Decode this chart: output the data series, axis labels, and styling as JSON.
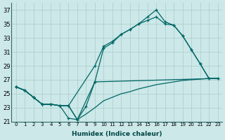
{
  "xlabel": "Humidex (Indice chaleur)",
  "bg_color": "#cce8e8",
  "grid_color": "#aacccc",
  "line_color": "#006666",
  "xlim": [
    -0.5,
    23.5
  ],
  "ylim": [
    21,
    38
  ],
  "yticks": [
    21,
    23,
    25,
    27,
    29,
    31,
    33,
    35,
    37
  ],
  "xticks": [
    0,
    1,
    2,
    3,
    4,
    5,
    6,
    7,
    8,
    9,
    10,
    11,
    12,
    13,
    14,
    15,
    16,
    17,
    18,
    19,
    20,
    21,
    22,
    23
  ],
  "s1x": [
    0,
    1,
    2,
    3,
    4,
    5,
    6,
    7,
    8,
    9,
    10,
    11,
    12,
    13,
    14,
    15,
    16,
    17,
    18,
    19,
    20,
    21,
    22
  ],
  "s1y": [
    26.0,
    25.5,
    24.5,
    23.5,
    23.5,
    23.3,
    21.5,
    21.3,
    23.2,
    26.7,
    31.5,
    32.3,
    33.5,
    34.2,
    35.0,
    36.0,
    37.0,
    35.3,
    34.8,
    33.3,
    31.3,
    29.3,
    27.2
  ],
  "s2x": [
    0,
    1,
    2,
    3,
    4,
    5,
    6,
    9,
    10,
    11,
    12,
    13,
    14,
    15,
    16,
    17,
    18,
    19,
    20,
    21,
    22,
    23
  ],
  "s2y": [
    26.0,
    25.5,
    24.5,
    23.5,
    23.5,
    23.3,
    23.3,
    29.0,
    31.8,
    32.5,
    33.5,
    34.2,
    35.0,
    35.5,
    36.0,
    35.0,
    34.8,
    33.3,
    31.3,
    29.3,
    27.2,
    27.2
  ],
  "s3x": [
    0,
    1,
    2,
    3,
    4,
    5,
    6,
    7,
    9,
    23
  ],
  "s3y": [
    26.0,
    25.5,
    24.5,
    23.5,
    23.5,
    23.3,
    23.3,
    21.3,
    26.7,
    27.2
  ],
  "s4x": [
    0,
    1,
    2,
    3,
    4,
    5,
    6,
    7,
    8,
    9,
    10,
    11,
    12,
    13,
    14,
    15,
    16,
    17,
    18,
    19,
    20,
    21,
    22,
    23
  ],
  "s4y": [
    26.0,
    25.5,
    24.5,
    23.5,
    23.5,
    23.3,
    23.3,
    21.3,
    22.1,
    23.0,
    24.0,
    24.5,
    25.0,
    25.3,
    25.7,
    26.0,
    26.3,
    26.5,
    26.7,
    26.9,
    27.0,
    27.1,
    27.2,
    27.2
  ]
}
